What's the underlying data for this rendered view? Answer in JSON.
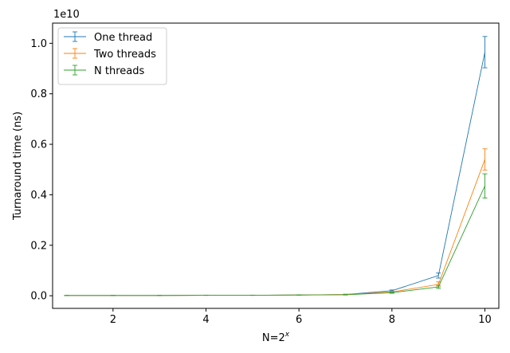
{
  "chart_data": {
    "type": "line",
    "title": "",
    "xlabel": "N=2",
    "xlabel_superscript": "x",
    "ylabel": "Turnaround time (ns)",
    "y_offset_label": "1e10",
    "y_scale": 10000000000.0,
    "xlim": [
      0.7,
      10.3
    ],
    "ylim": [
      -0.05,
      1.08
    ],
    "x_ticks": [
      2,
      4,
      6,
      8,
      10
    ],
    "y_ticks": [
      0.0,
      0.2,
      0.4,
      0.6,
      0.8,
      1.0
    ],
    "y_tick_labels": [
      "0.0",
      "0.2",
      "0.4",
      "0.6",
      "0.8",
      "1.0"
    ],
    "grid": false,
    "legend_position": "upper-left",
    "x": [
      1,
      2,
      3,
      4,
      5,
      6,
      7,
      8,
      9,
      10
    ],
    "series": [
      {
        "name": "One thread",
        "color": "#1f77b4",
        "values": [
          0.001,
          0.001,
          0.001,
          0.002,
          0.002,
          0.003,
          0.005,
          0.02,
          0.08,
          0.965
        ],
        "errors": [
          0.0002,
          0.0002,
          0.0002,
          0.0003,
          0.0003,
          0.0005,
          0.001,
          0.003,
          0.01,
          0.062
        ]
      },
      {
        "name": "Two threads",
        "color": "#ff7f0e",
        "values": [
          0.001,
          0.001,
          0.001,
          0.002,
          0.002,
          0.003,
          0.005,
          0.015,
          0.045,
          0.54
        ],
        "errors": [
          0.0002,
          0.0002,
          0.0002,
          0.0003,
          0.0003,
          0.0005,
          0.001,
          0.003,
          0.01,
          0.042
        ]
      },
      {
        "name": "N threads",
        "color": "#2ca02c",
        "values": [
          0.001,
          0.001,
          0.001,
          0.002,
          0.002,
          0.003,
          0.004,
          0.012,
          0.035,
          0.435
        ],
        "errors": [
          0.0002,
          0.0002,
          0.0002,
          0.0003,
          0.0003,
          0.0005,
          0.001,
          0.002,
          0.006,
          0.048
        ]
      }
    ]
  }
}
